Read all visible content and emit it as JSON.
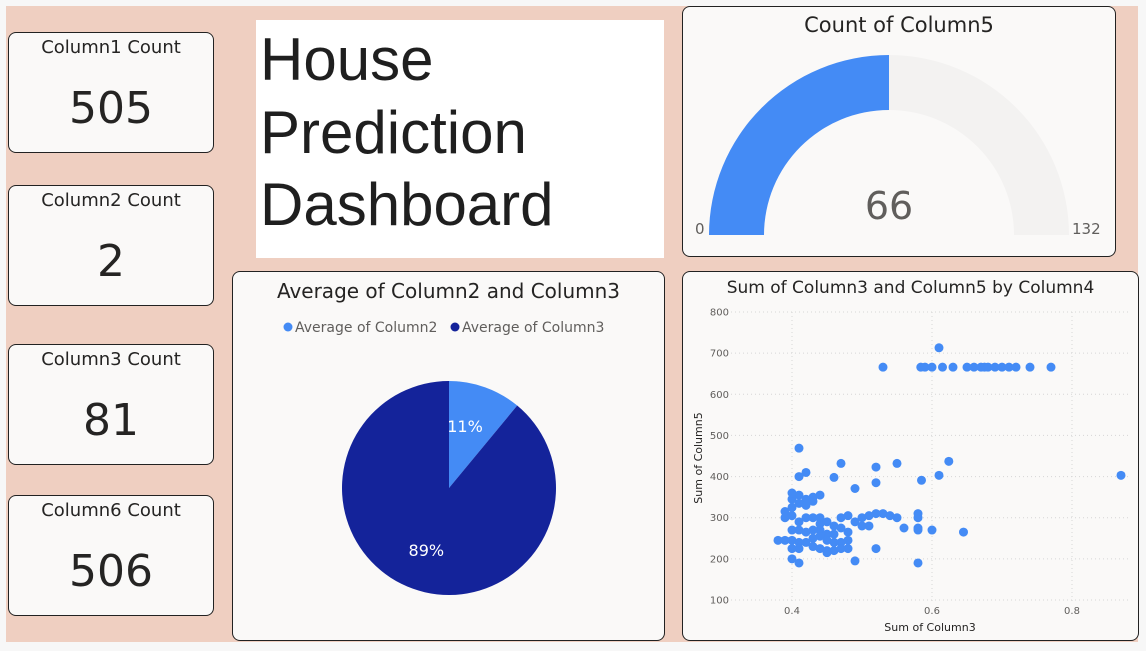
{
  "kpis": [
    {
      "label": "Column1 Count",
      "value": "505"
    },
    {
      "label": "Column2 Count",
      "value": "2"
    },
    {
      "label": "Column3 Count",
      "value": "81"
    },
    {
      "label": "Column6 Count",
      "value": "506"
    }
  ],
  "title": {
    "line1": "House",
    "line2": "Prediction",
    "line3": "Dashboard"
  },
  "colors": {
    "accent": "#448bf5",
    "dark": "#14239a",
    "track": "#f3f2f1",
    "background": "#efcfc1"
  },
  "chart_data": [
    {
      "type": "gauge",
      "title": "Count of Column5",
      "value": 66,
      "min": 0,
      "max": 132,
      "value_label": "66",
      "min_label": "0",
      "max_label": "132"
    },
    {
      "type": "pie",
      "title": "Average of Column2 and Column3",
      "legend_position": "top",
      "series": [
        {
          "name": "Average of Column2",
          "percent": 11,
          "label": "11%",
          "color": "#448bf5"
        },
        {
          "name": "Average of Column3",
          "percent": 89,
          "label": "89%",
          "color": "#14239a"
        }
      ]
    },
    {
      "type": "scatter",
      "title": "Sum of Column3 and Column5 by Column4",
      "xlabel": "Sum of Column3",
      "ylabel": "Sum of Column5",
      "xlim": [
        0.33,
        0.88
      ],
      "ylim": [
        100,
        800
      ],
      "x_ticks": [
        {
          "v": 0.4,
          "label": "0.4"
        },
        {
          "v": 0.6,
          "label": "0.6"
        },
        {
          "v": 0.8,
          "label": "0.8"
        }
      ],
      "y_ticks": [
        {
          "v": 100,
          "label": "100"
        },
        {
          "v": 200,
          "label": "200"
        },
        {
          "v": 300,
          "label": "300"
        },
        {
          "v": 400,
          "label": "400"
        },
        {
          "v": 500,
          "label": "500"
        },
        {
          "v": 600,
          "label": "600"
        },
        {
          "v": 700,
          "label": "700"
        },
        {
          "v": 800,
          "label": "800"
        }
      ],
      "grid": true,
      "color": "#448bf5",
      "points": [
        [
          0.53,
          666
        ],
        [
          0.584,
          666
        ],
        [
          0.59,
          666
        ],
        [
          0.6,
          666
        ],
        [
          0.61,
          713
        ],
        [
          0.615,
          666
        ],
        [
          0.63,
          666
        ],
        [
          0.65,
          666
        ],
        [
          0.66,
          666
        ],
        [
          0.67,
          666
        ],
        [
          0.675,
          666
        ],
        [
          0.68,
          666
        ],
        [
          0.69,
          666
        ],
        [
          0.7,
          666
        ],
        [
          0.71,
          666
        ],
        [
          0.72,
          666
        ],
        [
          0.74,
          666
        ],
        [
          0.77,
          666
        ],
        [
          0.87,
          403
        ],
        [
          0.624,
          437
        ],
        [
          0.61,
          403
        ],
        [
          0.585,
          391
        ],
        [
          0.55,
          432
        ],
        [
          0.52,
          423
        ],
        [
          0.52,
          385
        ],
        [
          0.47,
          432
        ],
        [
          0.46,
          398
        ],
        [
          0.49,
          371
        ],
        [
          0.41,
          469
        ],
        [
          0.41,
          400
        ],
        [
          0.42,
          410
        ],
        [
          0.42,
          345
        ],
        [
          0.41,
          355
        ],
        [
          0.43,
          350
        ],
        [
          0.44,
          355
        ],
        [
          0.43,
          340
        ],
        [
          0.4,
          345
        ],
        [
          0.4,
          360
        ],
        [
          0.41,
          335
        ],
        [
          0.42,
          330
        ],
        [
          0.4,
          325
        ],
        [
          0.39,
          315
        ],
        [
          0.39,
          300
        ],
        [
          0.4,
          305
        ],
        [
          0.41,
          290
        ],
        [
          0.42,
          300
        ],
        [
          0.43,
          300
        ],
        [
          0.44,
          300
        ],
        [
          0.44,
          285
        ],
        [
          0.45,
          290
        ],
        [
          0.46,
          280
        ],
        [
          0.47,
          300
        ],
        [
          0.48,
          305
        ],
        [
          0.49,
          290
        ],
        [
          0.5,
          300
        ],
        [
          0.51,
          305
        ],
        [
          0.52,
          310
        ],
        [
          0.53,
          310
        ],
        [
          0.54,
          305
        ],
        [
          0.55,
          300
        ],
        [
          0.58,
          300
        ],
        [
          0.58,
          310
        ],
        [
          0.56,
          275
        ],
        [
          0.58,
          275
        ],
        [
          0.6,
          270
        ],
        [
          0.4,
          270
        ],
        [
          0.41,
          270
        ],
        [
          0.42,
          265
        ],
        [
          0.43,
          270
        ],
        [
          0.44,
          270
        ],
        [
          0.45,
          260
        ],
        [
          0.46,
          260
        ],
        [
          0.47,
          275
        ],
        [
          0.48,
          265
        ],
        [
          0.5,
          280
        ],
        [
          0.51,
          280
        ],
        [
          0.38,
          245
        ],
        [
          0.39,
          245
        ],
        [
          0.4,
          245
        ],
        [
          0.41,
          240
        ],
        [
          0.42,
          240
        ],
        [
          0.43,
          250
        ],
        [
          0.44,
          255
        ],
        [
          0.45,
          245
        ],
        [
          0.46,
          240
        ],
        [
          0.47,
          240
        ],
        [
          0.48,
          245
        ],
        [
          0.4,
          225
        ],
        [
          0.41,
          225
        ],
        [
          0.43,
          230
        ],
        [
          0.44,
          225
        ],
        [
          0.45,
          220
        ],
        [
          0.46,
          220
        ],
        [
          0.47,
          225
        ],
        [
          0.48,
          225
        ],
        [
          0.52,
          225
        ],
        [
          0.58,
          270
        ],
        [
          0.645,
          265
        ],
        [
          0.4,
          200
        ],
        [
          0.41,
          190
        ],
        [
          0.45,
          215
        ],
        [
          0.49,
          195
        ],
        [
          0.58,
          190
        ]
      ]
    }
  ]
}
